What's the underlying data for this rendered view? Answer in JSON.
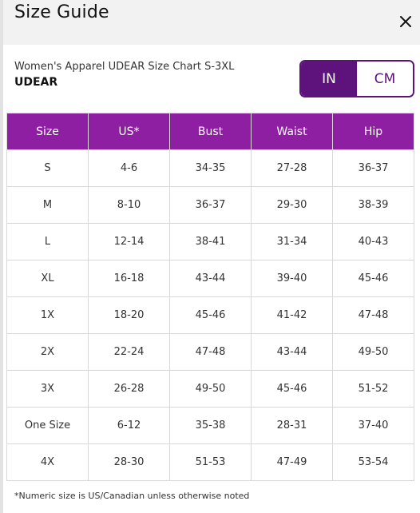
{
  "header": {
    "title": "Size Guide",
    "close_icon": "close-icon"
  },
  "chart_info": {
    "subtitle": "Women's Apparel UDEAR Size Chart S-3XL",
    "brand": "UDEAR"
  },
  "unit_toggle": {
    "options": [
      "IN",
      "CM"
    ],
    "selected": "IN",
    "accent_color": "#5e137c"
  },
  "table": {
    "header_color": "#8e1fa2",
    "columns": [
      "Size",
      "US*",
      "Bust",
      "Waist",
      "Hip"
    ],
    "rows": [
      [
        "S",
        "4-6",
        "34-35",
        "27-28",
        "36-37"
      ],
      [
        "M",
        "8-10",
        "36-37",
        "29-30",
        "38-39"
      ],
      [
        "L",
        "12-14",
        "38-41",
        "31-34",
        "40-43"
      ],
      [
        "XL",
        "16-18",
        "43-44",
        "39-40",
        "45-46"
      ],
      [
        "1X",
        "18-20",
        "45-46",
        "41-42",
        "47-48"
      ],
      [
        "2X",
        "22-24",
        "47-48",
        "43-44",
        "49-50"
      ],
      [
        "3X",
        "26-28",
        "49-50",
        "45-46",
        "51-52"
      ],
      [
        "One Size",
        "6-12",
        "35-38",
        "28-31",
        "37-40"
      ],
      [
        "4X",
        "28-30",
        "51-53",
        "47-49",
        "53-54"
      ]
    ]
  },
  "footnote": "*Numeric size is US/Canadian unless otherwise noted"
}
